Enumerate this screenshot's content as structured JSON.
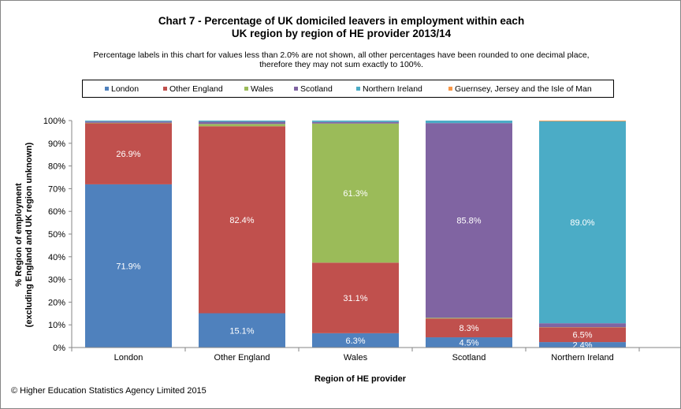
{
  "footer": "© Higher Education Statistics Agency Limited 2015",
  "chart_data": {
    "type": "stacked-bar-100",
    "title_lines": [
      "Chart 7 - Percentage of UK domiciled leavers in employment within each",
      "UK region by region of HE provider 2013/14"
    ],
    "subtitle_lines": [
      "Percentage labels in this chart for values less than 2.0% are not shown, all other percentages have been rounded to one decimal place,",
      "therefore they may not sum exactly to 100%."
    ],
    "xlabel": "Region of HE provider",
    "ylabel_lines": [
      "% Region of employment",
      "(excluding England and UK region unknown)"
    ],
    "ylim": [
      0,
      100
    ],
    "yticks": [
      "0%",
      "10%",
      "20%",
      "30%",
      "40%",
      "50%",
      "60%",
      "70%",
      "80%",
      "90%",
      "100%"
    ],
    "grid": false,
    "legend_position": "top",
    "categories": [
      "London",
      "Other England",
      "Wales",
      "Scotland",
      "Northern Ireland"
    ],
    "series": [
      {
        "name": "London",
        "color": "#4f81bd",
        "values": [
          71.9,
          15.1,
          6.3,
          4.5,
          2.4
        ]
      },
      {
        "name": "Other England",
        "color": "#c0504d",
        "values": [
          26.9,
          82.4,
          31.1,
          8.3,
          6.5
        ]
      },
      {
        "name": "Wales",
        "color": "#9bbb59",
        "values": [
          0.2,
          1.0,
          61.3,
          0.3,
          0.1
        ]
      },
      {
        "name": "Scotland",
        "color": "#8064a2",
        "values": [
          0.6,
          1.0,
          0.7,
          85.8,
          1.7
        ]
      },
      {
        "name": "Northern Ireland",
        "color": "#4bacc6",
        "values": [
          0.4,
          0.5,
          0.6,
          1.1,
          89.0
        ]
      },
      {
        "name": "Guernsey, Jersey and the Isle of Man",
        "color": "#f79646",
        "values": [
          0.0,
          0.0,
          0.0,
          0.0,
          0.3
        ]
      }
    ],
    "data_labels": [
      {
        "category": 0,
        "series": 0,
        "text": "71.9%"
      },
      {
        "category": 0,
        "series": 1,
        "text": "26.9%"
      },
      {
        "category": 1,
        "series": 0,
        "text": "15.1%"
      },
      {
        "category": 1,
        "series": 1,
        "text": "82.4%"
      },
      {
        "category": 2,
        "series": 0,
        "text": "6.3%"
      },
      {
        "category": 2,
        "series": 1,
        "text": "31.1%"
      },
      {
        "category": 2,
        "series": 2,
        "text": "61.3%"
      },
      {
        "category": 3,
        "series": 0,
        "text": "4.5%"
      },
      {
        "category": 3,
        "series": 1,
        "text": "8.3%"
      },
      {
        "category": 3,
        "series": 3,
        "text": "85.8%"
      },
      {
        "category": 4,
        "series": 0,
        "text": "2.4%"
      },
      {
        "category": 4,
        "series": 1,
        "text": "6.5%"
      },
      {
        "category": 4,
        "series": 4,
        "text": "89.0%"
      }
    ]
  }
}
